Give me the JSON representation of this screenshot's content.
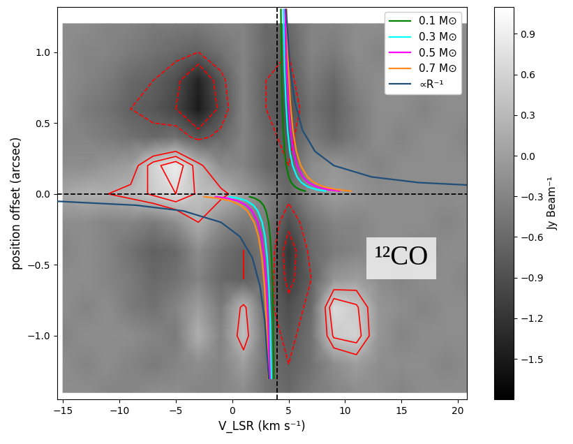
{
  "chart_data": {
    "type": "heatmap",
    "xlabel": "V_LSR (km s⁻¹)",
    "ylabel": "position offset (arcsec)",
    "annotation": "¹²CO",
    "xlim": [
      -15.5,
      20.8
    ],
    "ylim": [
      -1.45,
      1.32
    ],
    "xticks": [
      {
        "value": -15,
        "label": "−15"
      },
      {
        "value": -10,
        "label": "−10"
      },
      {
        "value": -5,
        "label": "−5"
      },
      0,
      5,
      10,
      15,
      20
    ],
    "yticks": [
      {
        "value": -1.0,
        "label": "−1.0"
      },
      {
        "value": -0.5,
        "label": "−0.5"
      },
      {
        "value": 0.0,
        "label": "0.0"
      },
      {
        "value": 0.5,
        "label": "0.5"
      },
      {
        "value": 1.0,
        "label": "1.0"
      }
    ],
    "legend": "upper right",
    "x": [
      -15,
      -13,
      -11,
      -9,
      -7,
      -5,
      -3,
      -1,
      1,
      3,
      5,
      7,
      9,
      11,
      13,
      15,
      17,
      19,
      21
    ],
    "y": [
      -1.4,
      -1.2,
      -1.0,
      -0.8,
      -0.6,
      -0.4,
      -0.2,
      0.0,
      0.2,
      0.4,
      0.6,
      0.8,
      1.0,
      1.2
    ],
    "cells": [
      [
        -0.2,
        -0.2,
        -0.3,
        -0.3,
        -0.2,
        -0.2,
        -0.3,
        -0.3,
        -0.2,
        -0.5,
        -0.6,
        -0.4,
        -0.3,
        -0.2,
        -0.2,
        -0.3,
        -0.2,
        -0.2,
        -0.2
      ],
      [
        -0.2,
        -0.3,
        -0.2,
        -0.3,
        -0.4,
        -0.3,
        -0.2,
        -0.3,
        0.0,
        -0.5,
        -0.7,
        -0.5,
        -0.2,
        0.0,
        -0.2,
        -0.2,
        -0.2,
        -0.3,
        -0.2
      ],
      [
        -0.3,
        -0.2,
        -0.2,
        -0.2,
        -0.3,
        -0.4,
        0.2,
        -0.3,
        0.4,
        -0.5,
        -0.8,
        -0.5,
        0.5,
        0.6,
        -0.1,
        -0.3,
        -0.2,
        -0.2,
        -0.2
      ],
      [
        -0.2,
        -0.3,
        -0.2,
        -0.4,
        -0.5,
        -0.3,
        0.0,
        -0.4,
        0.3,
        -0.6,
        -0.9,
        -0.6,
        0.7,
        0.5,
        -0.1,
        -0.2,
        -0.3,
        -0.2,
        -0.2
      ],
      [
        -0.2,
        -0.2,
        -0.3,
        -0.4,
        -0.6,
        -0.5,
        -0.3,
        -0.6,
        -0.7,
        -0.5,
        -1.1,
        -0.7,
        -0.1,
        0.0,
        -0.2,
        -0.3,
        -0.2,
        -0.2,
        -0.3
      ],
      [
        -0.3,
        -0.2,
        -0.3,
        -0.5,
        -0.7,
        -0.6,
        -0.2,
        -0.5,
        -0.7,
        -0.4,
        -1.2,
        -0.6,
        -0.4,
        -0.3,
        -0.2,
        -0.2,
        -0.3,
        -0.2,
        -0.2
      ],
      [
        -0.2,
        -0.2,
        -0.3,
        -0.3,
        -0.4,
        -0.2,
        0.2,
        -0.2,
        -0.4,
        -0.4,
        -0.9,
        -0.5,
        -0.3,
        -0.3,
        -0.2,
        -0.2,
        -0.2,
        -0.3,
        -0.2
      ],
      [
        0.1,
        0.2,
        0.2,
        0.3,
        0.5,
        0.7,
        0.4,
        0.3,
        0.0,
        -0.3,
        -0.6,
        -0.2,
        0.0,
        -0.1,
        -0.2,
        -0.2,
        -0.2,
        -0.2,
        -0.2
      ],
      [
        -0.2,
        -0.2,
        -0.1,
        0.0,
        0.6,
        0.9,
        0.3,
        -0.2,
        -0.3,
        -0.6,
        -0.7,
        -0.2,
        -0.1,
        -0.2,
        -0.3,
        -0.2,
        -0.2,
        -0.2,
        -0.2
      ],
      [
        -0.3,
        -0.3,
        -0.4,
        -0.5,
        -0.6,
        -0.5,
        -0.8,
        -0.6,
        -0.3,
        -0.6,
        -0.8,
        -0.4,
        -0.6,
        -0.4,
        -0.2,
        -0.3,
        -0.2,
        -0.2,
        -0.3
      ],
      [
        -0.2,
        -0.4,
        -0.5,
        -0.7,
        -0.8,
        -1.0,
        -1.5,
        -0.9,
        -0.3,
        -0.7,
        -0.9,
        -0.5,
        -0.7,
        -0.4,
        -0.2,
        -0.2,
        -0.3,
        -0.2,
        -0.2
      ],
      [
        -0.2,
        -0.3,
        -0.4,
        -0.6,
        -0.7,
        -0.9,
        -1.4,
        -0.8,
        -0.3,
        -0.7,
        -0.8,
        -0.4,
        -0.6,
        -0.3,
        -0.2,
        -0.2,
        -0.2,
        -0.2,
        -0.2
      ],
      [
        -0.2,
        -0.3,
        -0.3,
        -0.4,
        -0.5,
        -0.6,
        -0.7,
        -0.5,
        -0.3,
        -0.6,
        -0.7,
        -0.3,
        -0.4,
        -0.2,
        -0.3,
        -0.2,
        -0.2,
        -0.3,
        -0.2
      ],
      [
        -0.2,
        -0.2,
        -0.3,
        -0.3,
        -0.4,
        -0.4,
        -0.4,
        -0.3,
        -0.3,
        -0.6,
        -0.6,
        -0.3,
        -0.3,
        -0.2,
        -0.2,
        -0.2,
        -0.2,
        -0.2,
        -0.2
      ]
    ],
    "colorbar": {
      "label": "Jy Beam⁻¹",
      "range": [
        -1.8,
        1.1
      ],
      "ticks": [
        {
          "value": 0.9,
          "label": "0.9"
        },
        {
          "value": 0.6,
          "label": "0.6"
        },
        {
          "value": 0.3,
          "label": "0.3"
        },
        {
          "value": 0.0,
          "label": "0.0"
        },
        {
          "value": -0.3,
          "label": "−0.3"
        },
        {
          "value": -0.6,
          "label": "−0.6"
        },
        {
          "value": -0.9,
          "label": "−0.9"
        },
        {
          "value": -1.2,
          "label": "−1.2"
        },
        {
          "value": -1.5,
          "label": "−1.5"
        }
      ]
    },
    "contour": {
      "levels": [
        -1.0,
        -0.7,
        0.2,
        0.45,
        0.7
      ],
      "color": "#ff0000"
    },
    "reference_lines": {
      "x": 4,
      "y": 0
    },
    "series": [
      {
        "name": "0.1 M⊙",
        "color": "#008000",
        "x": [
          6.46,
          6.01,
          5.56,
          5.23,
          5.01,
          4.78,
          4.64,
          4.52,
          4.43,
          4.37,
          4.31,
          null,
          1.54,
          1.99,
          2.44,
          2.77,
          2.99,
          3.22,
          3.36,
          3.48,
          3.57,
          3.63,
          3.69
        ],
        "values": [
          0.02,
          0.03,
          0.05,
          0.08,
          0.12,
          0.2,
          0.3,
          0.45,
          0.65,
          0.9,
          1.3,
          null,
          -0.02,
          -0.03,
          -0.05,
          -0.08,
          -0.12,
          -0.2,
          -0.3,
          -0.45,
          -0.65,
          -0.9,
          -1.3
        ]
      },
      {
        "name": "0.3 M⊙",
        "color": "#00ffff",
        "x": [
          8.26,
          7.47,
          6.69,
          6.13,
          5.74,
          5.35,
          5.1,
          4.9,
          4.75,
          4.63,
          4.53,
          null,
          -0.26,
          0.53,
          1.31,
          1.87,
          2.26,
          2.65,
          2.9,
          3.1,
          3.25,
          3.37,
          3.47
        ],
        "values": [
          0.02,
          0.03,
          0.05,
          0.08,
          0.12,
          0.2,
          0.3,
          0.45,
          0.65,
          0.9,
          1.3,
          null,
          -0.02,
          -0.03,
          -0.05,
          -0.08,
          -0.12,
          -0.2,
          -0.3,
          -0.45,
          -0.65,
          -0.9,
          -1.3
        ]
      },
      {
        "name": "0.5 M⊙",
        "color": "#ff00ff",
        "x": [
          9.5,
          8.49,
          7.48,
          6.75,
          6.25,
          5.74,
          5.42,
          5.16,
          4.96,
          4.82,
          4.68,
          null,
          -1.5,
          -0.49,
          0.52,
          1.25,
          1.75,
          2.26,
          2.58,
          2.84,
          3.04,
          3.18,
          3.32
        ],
        "values": [
          0.02,
          0.03,
          0.05,
          0.08,
          0.12,
          0.2,
          0.3,
          0.45,
          0.65,
          0.9,
          1.3,
          null,
          -0.02,
          -0.03,
          -0.05,
          -0.08,
          -0.12,
          -0.2,
          -0.3,
          -0.45,
          -0.65,
          -0.9,
          -1.3
        ]
      },
      {
        "name": "0.7 M⊙",
        "color": "#ff8c1a",
        "x": [
          10.5,
          9.31,
          8.11,
          7.26,
          6.66,
          6.06,
          5.68,
          5.37,
          5.14,
          4.97,
          4.81,
          null,
          -2.5,
          -1.31,
          -0.11,
          0.74,
          1.34,
          1.94,
          2.32,
          2.63,
          2.86,
          3.03,
          3.19
        ],
        "values": [
          0.02,
          0.03,
          0.05,
          0.08,
          0.12,
          0.2,
          0.3,
          0.45,
          0.65,
          0.9,
          1.3,
          null,
          -0.02,
          -0.03,
          -0.05,
          -0.08,
          -0.12,
          -0.2,
          -0.3,
          -0.45,
          -0.65,
          -0.9,
          -1.3
        ]
      },
      {
        "name": "∝R⁻¹",
        "color": "#1f4e79",
        "x": [
          54,
          37.3,
          24,
          16.5,
          12.33,
          9,
          7.33,
          6.22,
          5.54,
          5.11,
          4.77,
          null,
          -46,
          -29.3,
          -16,
          -8.5,
          -4.33,
          -1,
          0.67,
          1.78,
          2.46,
          2.89,
          3.23
        ],
        "values": [
          0.02,
          0.03,
          0.05,
          0.08,
          0.12,
          0.2,
          0.3,
          0.45,
          0.65,
          0.9,
          1.3,
          null,
          -0.02,
          -0.03,
          -0.05,
          -0.08,
          -0.12,
          -0.2,
          -0.3,
          -0.45,
          -0.65,
          -0.9,
          -1.3
        ]
      }
    ]
  }
}
